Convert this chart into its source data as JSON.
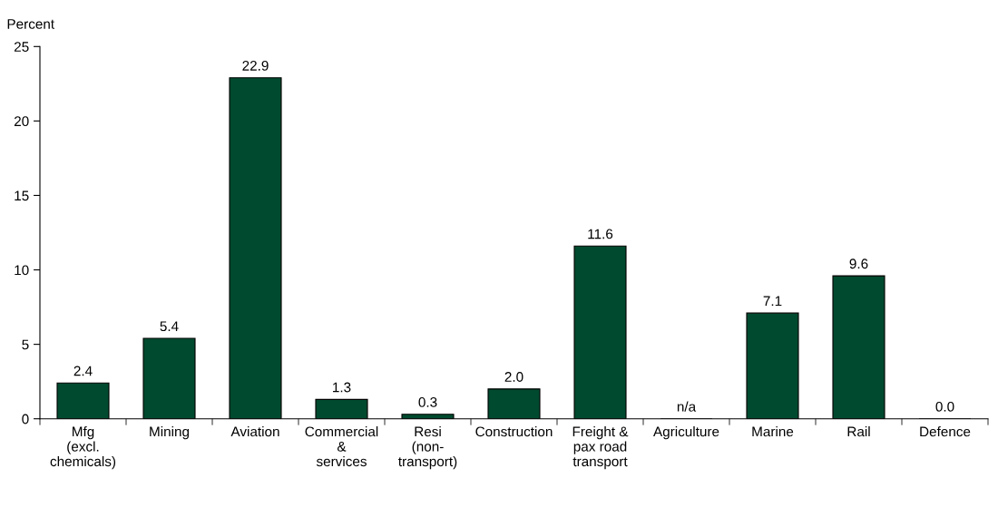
{
  "chart_data": {
    "type": "bar",
    "ylabel": "Percent",
    "categories": [
      "Mfg\n(excl.\nchemicals)",
      "Mining",
      "Aviation",
      "Commercial\n&\nservices",
      "Resi\n(non-\ntransport)",
      "Construction",
      "Freight &\npax road\ntransport",
      "Agriculture",
      "Marine",
      "Rail",
      "Defence"
    ],
    "values": [
      2.4,
      5.4,
      22.9,
      1.3,
      0.3,
      2.0,
      11.6,
      null,
      7.1,
      9.6,
      0.0
    ],
    "value_labels": [
      "2.4",
      "5.4",
      "22.9",
      "1.3",
      "0.3",
      "2.0",
      "11.6",
      "n/a",
      "7.1",
      "9.6",
      "0.0"
    ],
    "color": "#004a2f",
    "ylim": [
      0,
      25
    ],
    "yticks": [
      0,
      5,
      10,
      15,
      20,
      25
    ],
    "grid": false,
    "legend": false
  }
}
